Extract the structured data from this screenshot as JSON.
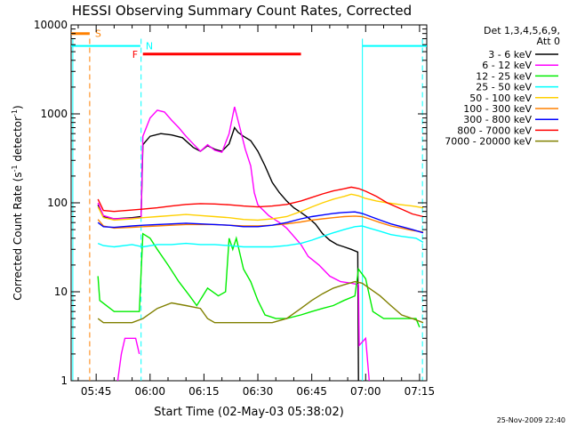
{
  "chart_data": {
    "type": "line",
    "title": "HESSI Observing Summary Count Rates, Corrected",
    "xlabel": "Start Time (02-May-03 05:38:02)",
    "ylabel": "Corrected Count Rate (s⁻¹ detector⁻¹)",
    "ylabel_parts": {
      "pre": "Corrected Count Rate (s",
      "sup1": "-1",
      "mid": " detector",
      "sup2": "-1",
      "post": ")"
    },
    "footer_date": "25-Nov-2009 22:40",
    "x_unit": "minutes of day",
    "xlim": [
      338.03,
      437
    ],
    "ylim": [
      1,
      10000
    ],
    "yscale": "log",
    "grid": false,
    "legend_placement": "outside-right",
    "xticks": [
      {
        "value": 345,
        "label": "05:45"
      },
      {
        "value": 360,
        "label": "06:00"
      },
      {
        "value": 375,
        "label": "06:15"
      },
      {
        "value": 390,
        "label": "06:30"
      },
      {
        "value": 405,
        "label": "06:45"
      },
      {
        "value": 420,
        "label": "07:00"
      },
      {
        "value": 435,
        "label": "07:15"
      }
    ],
    "yticks": [
      {
        "value": 1,
        "label": "1"
      },
      {
        "value": 10,
        "label": "10"
      },
      {
        "value": 100,
        "label": "100"
      },
      {
        "value": 1000,
        "label": "1000"
      },
      {
        "value": 10000,
        "label": "10000"
      }
    ],
    "legend_header": [
      "Det 1,3,4,5,6,9,",
      "Att 0"
    ],
    "series": [
      {
        "name": "3 - 6 keV",
        "color": "#000000",
        "points": [
          [
            345.5,
            95
          ],
          [
            347,
            70
          ],
          [
            350,
            66
          ],
          [
            355,
            68
          ],
          [
            357.5,
            70
          ],
          [
            358,
            450
          ],
          [
            360,
            560
          ],
          [
            363,
            600
          ],
          [
            366,
            580
          ],
          [
            369,
            540
          ],
          [
            372,
            420
          ],
          [
            374,
            380
          ],
          [
            376,
            440
          ],
          [
            378,
            400
          ],
          [
            380,
            380
          ],
          [
            382,
            460
          ],
          [
            383.5,
            700
          ],
          [
            384.5,
            620
          ],
          [
            386,
            560
          ],
          [
            388,
            500
          ],
          [
            390,
            380
          ],
          [
            392,
            260
          ],
          [
            394,
            170
          ],
          [
            396,
            130
          ],
          [
            398,
            105
          ],
          [
            400,
            88
          ],
          [
            402,
            78
          ],
          [
            404,
            68
          ],
          [
            406,
            58
          ],
          [
            408,
            45
          ],
          [
            410,
            38
          ],
          [
            412,
            34
          ],
          [
            414,
            32
          ],
          [
            416,
            30
          ],
          [
            417.8,
            28
          ],
          [
            418,
            1
          ]
        ]
      },
      {
        "name": "6 - 12 keV",
        "color": "#ff00ff",
        "points": [
          [
            345.5,
            100
          ],
          [
            347,
            72
          ],
          [
            350,
            66
          ],
          [
            355,
            67
          ],
          [
            357.5,
            68
          ],
          [
            358,
            560
          ],
          [
            360,
            900
          ],
          [
            362,
            1100
          ],
          [
            364,
            1050
          ],
          [
            366,
            850
          ],
          [
            368,
            700
          ],
          [
            370,
            560
          ],
          [
            372,
            460
          ],
          [
            374,
            380
          ],
          [
            376,
            450
          ],
          [
            378,
            390
          ],
          [
            380,
            370
          ],
          [
            382,
            600
          ],
          [
            383.5,
            1200
          ],
          [
            385,
            700
          ],
          [
            386.5,
            400
          ],
          [
            388,
            260
          ],
          [
            389,
            130
          ],
          [
            390,
            95
          ],
          [
            393,
            72
          ],
          [
            396,
            60
          ],
          [
            398,
            52
          ],
          [
            400,
            42
          ],
          [
            402,
            34
          ],
          [
            404,
            25
          ],
          [
            407,
            20
          ],
          [
            410,
            15
          ],
          [
            413,
            13
          ],
          [
            416,
            12.5
          ],
          [
            418,
            12
          ],
          [
            418.2,
            2.5
          ],
          [
            420,
            3
          ],
          [
            421,
            1
          ],
          [
            351,
            1
          ],
          [
            352,
            2
          ],
          [
            353,
            3
          ],
          [
            356,
            3
          ],
          [
            357,
            2
          ]
        ]
      },
      {
        "name": "12 - 25 keV",
        "color": "#00ee00",
        "points": [
          [
            345.5,
            15
          ],
          [
            346,
            8
          ],
          [
            350,
            6
          ],
          [
            355,
            6
          ],
          [
            357,
            6
          ],
          [
            358,
            45
          ],
          [
            360,
            40
          ],
          [
            362,
            30
          ],
          [
            365,
            20
          ],
          [
            368,
            13
          ],
          [
            371,
            9
          ],
          [
            373,
            7
          ],
          [
            376,
            11
          ],
          [
            379,
            9
          ],
          [
            381,
            10
          ],
          [
            382,
            40
          ],
          [
            383,
            30
          ],
          [
            384,
            40
          ],
          [
            386,
            18
          ],
          [
            388,
            13
          ],
          [
            390,
            8
          ],
          [
            392,
            5.5
          ],
          [
            395,
            5
          ],
          [
            398,
            5
          ],
          [
            402,
            5.5
          ],
          [
            405,
            6
          ],
          [
            408,
            6.5
          ],
          [
            411,
            7
          ],
          [
            414,
            8
          ],
          [
            417,
            9
          ],
          [
            418,
            18
          ],
          [
            420,
            14
          ],
          [
            422,
            6
          ],
          [
            425,
            5
          ],
          [
            430,
            5
          ],
          [
            434,
            5
          ],
          [
            435,
            4
          ]
        ]
      },
      {
        "name": "25 - 50 keV",
        "color": "#00ffff",
        "points": [
          [
            345.5,
            35
          ],
          [
            347,
            33
          ],
          [
            350,
            32
          ],
          [
            355,
            34
          ],
          [
            358,
            32
          ],
          [
            362,
            34
          ],
          [
            366,
            34
          ],
          [
            370,
            35
          ],
          [
            374,
            34
          ],
          [
            378,
            34
          ],
          [
            382,
            33
          ],
          [
            386,
            32
          ],
          [
            390,
            32
          ],
          [
            394,
            32
          ],
          [
            398,
            33
          ],
          [
            402,
            35
          ],
          [
            405,
            38
          ],
          [
            408,
            42
          ],
          [
            411,
            46
          ],
          [
            414,
            50
          ],
          [
            417,
            54
          ],
          [
            419,
            55
          ],
          [
            421,
            52
          ],
          [
            424,
            48
          ],
          [
            427,
            44
          ],
          [
            430,
            42
          ],
          [
            434,
            40
          ],
          [
            436,
            36
          ]
        ]
      },
      {
        "name": "50 - 100 keV",
        "color": "#ffd000",
        "points": [
          [
            345.5,
            90
          ],
          [
            347,
            68
          ],
          [
            350,
            64
          ],
          [
            355,
            66
          ],
          [
            358,
            68
          ],
          [
            362,
            70
          ],
          [
            366,
            72
          ],
          [
            370,
            74
          ],
          [
            374,
            72
          ],
          [
            378,
            70
          ],
          [
            382,
            68
          ],
          [
            386,
            65
          ],
          [
            390,
            64
          ],
          [
            394,
            66
          ],
          [
            398,
            70
          ],
          [
            402,
            80
          ],
          [
            405,
            90
          ],
          [
            408,
            100
          ],
          [
            411,
            110
          ],
          [
            414,
            118
          ],
          [
            416,
            125
          ],
          [
            418,
            120
          ],
          [
            420,
            112
          ],
          [
            423,
            105
          ],
          [
            426,
            100
          ],
          [
            430,
            95
          ],
          [
            433,
            92
          ],
          [
            436,
            88
          ]
        ]
      },
      {
        "name": "100 - 300 keV",
        "color": "#ff8000",
        "points": [
          [
            345.5,
            65
          ],
          [
            347,
            55
          ],
          [
            350,
            52
          ],
          [
            355,
            53
          ],
          [
            358,
            54
          ],
          [
            362,
            55
          ],
          [
            366,
            56
          ],
          [
            370,
            57
          ],
          [
            374,
            57
          ],
          [
            378,
            57
          ],
          [
            382,
            56
          ],
          [
            386,
            55
          ],
          [
            390,
            55
          ],
          [
            394,
            56
          ],
          [
            398,
            58
          ],
          [
            402,
            61
          ],
          [
            405,
            64
          ],
          [
            408,
            66
          ],
          [
            411,
            68
          ],
          [
            414,
            70
          ],
          [
            417,
            71
          ],
          [
            419,
            70
          ],
          [
            421,
            66
          ],
          [
            424,
            60
          ],
          [
            427,
            55
          ],
          [
            430,
            52
          ],
          [
            433,
            49
          ],
          [
            436,
            47
          ]
        ]
      },
      {
        "name": "300 - 800 keV",
        "color": "#0000ff",
        "points": [
          [
            345.5,
            60
          ],
          [
            347,
            54
          ],
          [
            350,
            53
          ],
          [
            355,
            55
          ],
          [
            358,
            56
          ],
          [
            362,
            57
          ],
          [
            366,
            58
          ],
          [
            370,
            59
          ],
          [
            374,
            58
          ],
          [
            378,
            57
          ],
          [
            382,
            56
          ],
          [
            386,
            54
          ],
          [
            390,
            54
          ],
          [
            394,
            56
          ],
          [
            398,
            60
          ],
          [
            402,
            66
          ],
          [
            405,
            70
          ],
          [
            408,
            73
          ],
          [
            411,
            76
          ],
          [
            414,
            78
          ],
          [
            417,
            79
          ],
          [
            419,
            76
          ],
          [
            421,
            71
          ],
          [
            424,
            64
          ],
          [
            427,
            58
          ],
          [
            430,
            54
          ],
          [
            433,
            50
          ],
          [
            436,
            46
          ]
        ]
      },
      {
        "name": "800 - 7000 keV",
        "color": "#ff0000",
        "points": [
          [
            345.5,
            110
          ],
          [
            347,
            82
          ],
          [
            350,
            80
          ],
          [
            355,
            83
          ],
          [
            358,
            85
          ],
          [
            362,
            88
          ],
          [
            366,
            92
          ],
          [
            370,
            96
          ],
          [
            374,
            98
          ],
          [
            378,
            97
          ],
          [
            382,
            95
          ],
          [
            386,
            92
          ],
          [
            390,
            90
          ],
          [
            394,
            92
          ],
          [
            398,
            96
          ],
          [
            402,
            105
          ],
          [
            405,
            115
          ],
          [
            408,
            126
          ],
          [
            411,
            136
          ],
          [
            414,
            144
          ],
          [
            416,
            150
          ],
          [
            418,
            145
          ],
          [
            420,
            135
          ],
          [
            423,
            118
          ],
          [
            426,
            100
          ],
          [
            430,
            85
          ],
          [
            433,
            75
          ],
          [
            436,
            70
          ]
        ]
      },
      {
        "name": "7000 - 20000 keV",
        "color": "#808000",
        "points": [
          [
            345.5,
            5
          ],
          [
            347,
            4.5
          ],
          [
            350,
            4.5
          ],
          [
            355,
            4.5
          ],
          [
            358,
            5
          ],
          [
            362,
            6.5
          ],
          [
            366,
            7.5
          ],
          [
            370,
            7
          ],
          [
            374,
            6.5
          ],
          [
            376,
            5
          ],
          [
            378,
            4.5
          ],
          [
            382,
            4.5
          ],
          [
            386,
            4.5
          ],
          [
            390,
            4.5
          ],
          [
            394,
            4.5
          ],
          [
            398,
            5
          ],
          [
            402,
            6.5
          ],
          [
            405,
            8
          ],
          [
            408,
            9.5
          ],
          [
            411,
            11
          ],
          [
            414,
            12
          ],
          [
            417,
            13
          ],
          [
            419,
            12.5
          ],
          [
            421,
            11
          ],
          [
            424,
            9
          ],
          [
            427,
            7
          ],
          [
            430,
            5.5
          ],
          [
            433,
            5
          ],
          [
            436,
            4.5
          ]
        ]
      }
    ],
    "flags": [
      {
        "label": "S",
        "color": "#ff8000",
        "x": [
          338.03,
          343.2
        ],
        "y": 8000
      },
      {
        "label": "N",
        "color": "#00ffff",
        "x": [
          338.03,
          357.3
        ],
        "y": 5800,
        "x2": [
          419.1,
          437
        ]
      },
      {
        "label": "F",
        "color": "#ff0000",
        "x": [
          358,
          402
        ],
        "y": 4700
      }
    ],
    "vlines": [
      {
        "x": 343.2,
        "color": "#ff8000",
        "style": "dashed"
      },
      {
        "x": 357.5,
        "color": "#00ffff",
        "style": "dashed"
      },
      {
        "x": 419.1,
        "color": "#00ffff",
        "style": "solid"
      },
      {
        "x": 435.8,
        "color": "#00ffff",
        "style": "dashed"
      },
      {
        "x": 338.5,
        "color": "#00ffff",
        "style": "solid"
      }
    ]
  }
}
